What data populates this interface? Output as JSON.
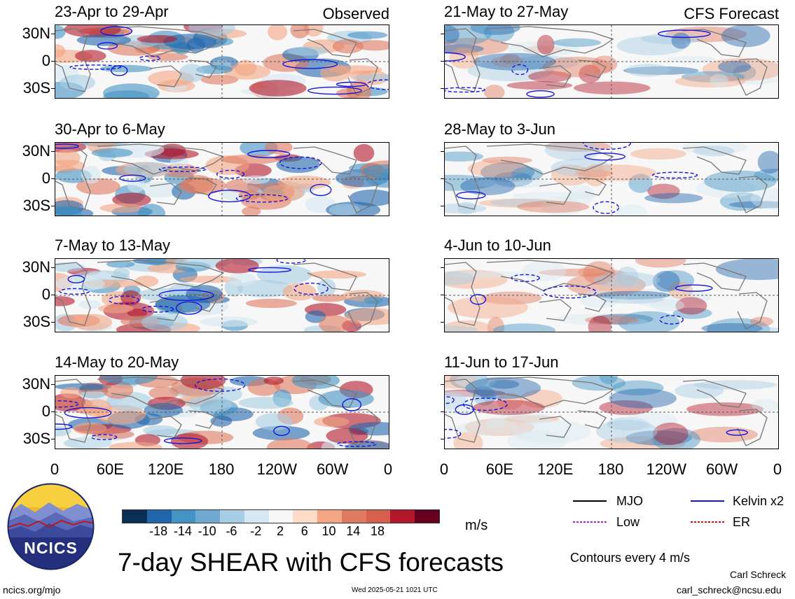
{
  "panels_left": [
    {
      "title": "23-Apr to 29-Apr",
      "tag": "Observed"
    },
    {
      "title": "30-Apr to 6-May",
      "tag": ""
    },
    {
      "title": "7-May to 13-May",
      "tag": ""
    },
    {
      "title": "14-May to 20-May",
      "tag": ""
    }
  ],
  "panels_right": [
    {
      "title": "21-May to 27-May",
      "tag": "CFS Forecast"
    },
    {
      "title": "28-May to 3-Jun",
      "tag": ""
    },
    {
      "title": "4-Jun to 10-Jun",
      "tag": ""
    },
    {
      "title": "11-Jun to 17-Jun",
      "tag": ""
    }
  ],
  "lat_labels": [
    "30N",
    "0",
    "30S"
  ],
  "lon_labels": [
    "0",
    "60E",
    "120E",
    "180",
    "120W",
    "60W",
    "0"
  ],
  "colorbar": {
    "labels": [
      "-18",
      "-14",
      "-10",
      "-6",
      "-2",
      "2",
      "6",
      "10",
      "14",
      "18"
    ],
    "colors": [
      "#0a2f55",
      "#2166ac",
      "#4393c3",
      "#6fa9d2",
      "#a6cde3",
      "#d6e8f2",
      "#f7f7f7",
      "#fddbc7",
      "#f4a582",
      "#e07a5f",
      "#d6604d",
      "#b2182b",
      "#67001f"
    ],
    "unit": "m/s"
  },
  "legend": {
    "mjo": "MJO",
    "kelvin": "Kelvin x2",
    "low": "Low",
    "er": "ER",
    "contours": "Contours every 4 m/s",
    "colors": {
      "mjo": "#000000",
      "kelvin": "#1414dc",
      "low": "#a020f0",
      "er": "#e01010"
    }
  },
  "logo": {
    "text": "NCICS"
  },
  "main_title": "7-day SHEAR with CFS forecasts",
  "footer": {
    "url": "ncics.org/mjo",
    "timestamp": "Wed 2025-05-21 1021 UTC",
    "author": "Carl Schreck",
    "email": "carl_schreck@ncsu.edu"
  }
}
